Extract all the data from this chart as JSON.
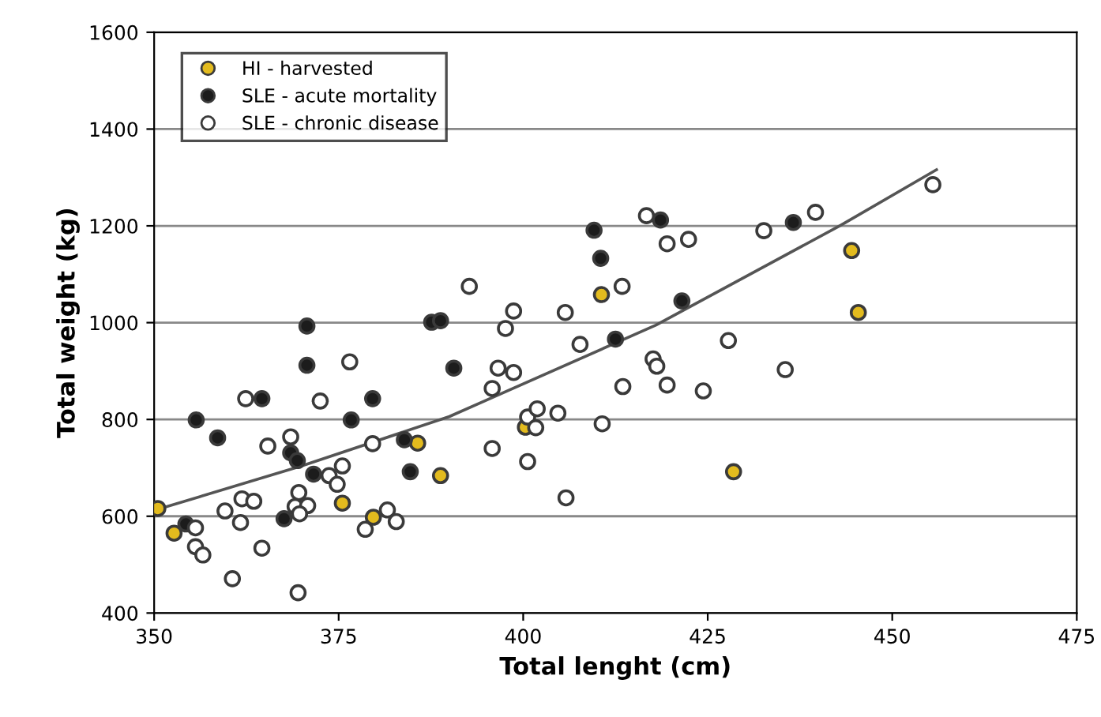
{
  "chart_data": {
    "type": "scatter",
    "xlabel": "Total lenght (cm)",
    "ylabel": "Total weight (kg)",
    "xlim": [
      350,
      475
    ],
    "xticks": [
      350,
      375,
      400,
      425,
      450,
      475
    ],
    "ylim": [
      400,
      1600
    ],
    "yticks": [
      400,
      600,
      800,
      1000,
      1200,
      1400,
      1600
    ],
    "grid": "y",
    "legend": "top left",
    "marker": "circle",
    "series": [
      {
        "name": "HI - harvested",
        "color": "#e3bb1e",
        "x": [
          350.5,
          352.7,
          385.7,
          388.8,
          375.5,
          379.7,
          410.6,
          428.5,
          400.3,
          444.5,
          445.4
        ],
        "values": [
          616,
          565,
          751,
          684,
          627,
          598,
          1058,
          692,
          784,
          1149,
          1021
        ]
      },
      {
        "name": "SLE - acute mortality",
        "color": "#1c1c1c",
        "x": [
          370.7,
          370.7,
          364.6,
          355.7,
          358.6,
          376.7,
          379.6,
          368.5,
          369.4,
          371.6,
          367.6,
          383.9,
          384.7,
          387.6,
          388.8,
          390.6,
          354.3,
          409.6,
          410.5,
          418.6,
          421.5,
          412.5,
          436.6
        ],
        "values": [
          993,
          912,
          843,
          799,
          762,
          799,
          843,
          731,
          715,
          687,
          595,
          758,
          692,
          1001,
          1004,
          906,
          584,
          1191,
          1133,
          1212,
          1045,
          966,
          1207
        ]
      },
      {
        "name": "SLE - chronic disease",
        "color": "#ffffff",
        "x": [
          362.4,
          376.5,
          372.5,
          365.4,
          368.5,
          379.6,
          373.7,
          375.5,
          374.8,
          369.6,
          361.9,
          363.5,
          359.6,
          361.7,
          369.1,
          370.8,
          369.7,
          355.6,
          355.6,
          356.6,
          364.6,
          360.6,
          369.5,
          378.6,
          381.6,
          382.8,
          416.7,
          419.5,
          422.4,
          392.7,
          398.7,
          397.6,
          405.7,
          407.7,
          413.4,
          417.6,
          418.1,
          427.8,
          396.6,
          398.7,
          395.8,
          413.5,
          419.5,
          424.4,
          400.6,
          401.9,
          401.7,
          404.7,
          410.7,
          395.8,
          400.6,
          405.8,
          432.6,
          439.6,
          455.5,
          435.5
        ],
        "values": [
          843,
          919,
          838,
          745,
          764,
          750,
          684,
          704,
          666,
          649,
          636,
          631,
          611,
          587,
          620,
          622,
          605,
          576,
          537,
          520,
          534,
          471,
          442,
          573,
          613,
          589,
          1221,
          1163,
          1172,
          1075,
          1024,
          988,
          1021,
          955,
          1075,
          925,
          910,
          963,
          906,
          897,
          864,
          868,
          871,
          859,
          805,
          822,
          783,
          813,
          791,
          740,
          713,
          638,
          1190,
          1228,
          1285,
          903
        ]
      },
      {
        "type": "line",
        "color": "#555555",
        "marker": "none",
        "x": [
          350,
          370,
          390,
          418,
          443,
          456
        ],
        "values": [
          612,
          704,
          806,
          995,
          1201,
          1316
        ]
      }
    ]
  }
}
